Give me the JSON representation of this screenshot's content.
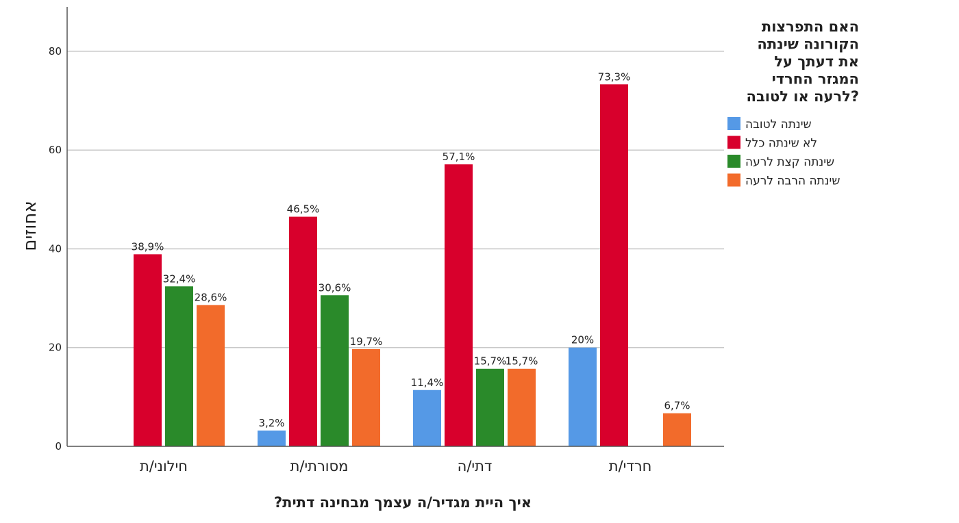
{
  "chart_data": {
    "type": "bar",
    "categories": [
      "חילוני/ת",
      "מסורתי/ת",
      "דתי/ה",
      "חרדי/ת"
    ],
    "series": [
      {
        "name": "שינתה לטובה",
        "color": "#5599e6",
        "values": [
          null,
          3.2,
          11.4,
          20
        ],
        "labels": [
          "",
          "3,2%",
          "11,4%",
          "20%"
        ]
      },
      {
        "name": "לא שינתה כלל",
        "color": "#d8002c",
        "values": [
          38.9,
          46.5,
          57.1,
          73.3
        ],
        "labels": [
          "38,9%",
          "46,5%",
          "57,1%",
          "73,3%"
        ]
      },
      {
        "name": "שינתה קצת לרעה",
        "color": "#2a8a2a",
        "values": [
          32.4,
          30.6,
          15.7,
          null
        ],
        "labels": [
          "32,4%",
          "30,6%",
          "15,7%",
          ""
        ]
      },
      {
        "name": "שינתה הרבה לרעה",
        "color": "#f26b2b",
        "values": [
          28.6,
          19.7,
          15.7,
          6.7
        ],
        "labels": [
          "28,6%",
          "19,7%",
          "15,7%",
          "6,7%"
        ]
      }
    ],
    "ylabel": "אחוזים",
    "xlabel": "איך היית מגדיר/ה עצמך מבחינה דתית?",
    "ylim": [
      0,
      89
    ],
    "yticks": [
      0,
      20,
      40,
      60,
      80
    ],
    "grid": true,
    "legend": {
      "placement": "right",
      "title_lines": [
        "האם התפרצות",
        "הקורונה שינתה",
        "את דעתך על",
        "המגזר החרדי",
        "לרעה או לטובה?"
      ]
    }
  }
}
